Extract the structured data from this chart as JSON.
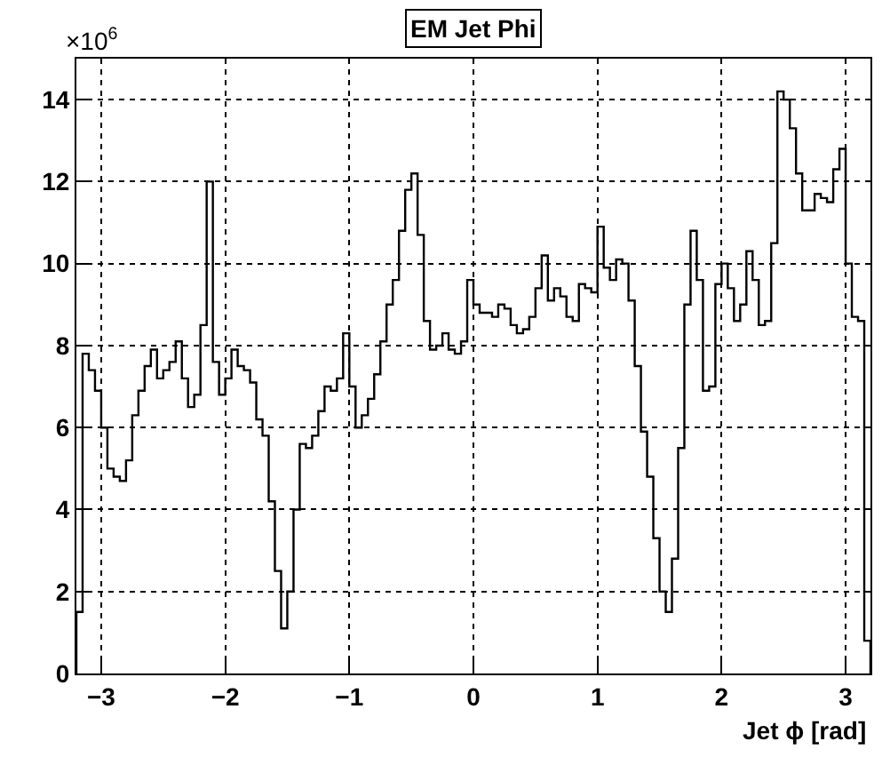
{
  "chart_data": {
    "type": "histogram",
    "title": "EM Jet Phi",
    "xlabel": "Jet ϕ [rad]",
    "ylabel": "×10$^{6}$",
    "bins": [
      -3.2,
      -3.15,
      -3.1,
      -3.05,
      -3.0,
      -2.95,
      -2.9,
      -2.85,
      -2.8,
      -2.75,
      -2.7,
      -2.65,
      -2.6,
      -2.55,
      -2.5,
      -2.45,
      -2.4,
      -2.35,
      -2.3,
      -2.25,
      -2.2,
      -2.15,
      -2.1,
      -2.05,
      -2.0,
      -1.95,
      -1.9,
      -1.85,
      -1.8,
      -1.75,
      -1.7,
      -1.65,
      -1.6,
      -1.55,
      -1.5,
      -1.45,
      -1.4,
      -1.35,
      -1.3,
      -1.25,
      -1.2,
      -1.15,
      -1.1,
      -1.05,
      -1.0,
      -0.95,
      -0.9,
      -0.85,
      -0.8,
      -0.75,
      -0.7,
      -0.65,
      -0.6,
      -0.55,
      -0.5,
      -0.45,
      -0.4,
      -0.35,
      -0.3,
      -0.25,
      -0.2,
      -0.15,
      -0.1,
      -0.05,
      0,
      0.05,
      0.1,
      0.15,
      0.2,
      0.25,
      0.3,
      0.35,
      0.4,
      0.45,
      0.5,
      0.55,
      0.6,
      0.65,
      0.7,
      0.75,
      0.8,
      0.85,
      0.9,
      0.95,
      1.0,
      1.05,
      1.1,
      1.15,
      1.2,
      1.25,
      1.3,
      1.35,
      1.4,
      1.45,
      1.5,
      1.55,
      1.6,
      1.65,
      1.7,
      1.75,
      1.8,
      1.85,
      1.9,
      1.95,
      2.0,
      2.05,
      2.1,
      2.15,
      2.2,
      2.25,
      2.3,
      2.35,
      2.4,
      2.45,
      2.5,
      2.55,
      2.6,
      2.65,
      2.7,
      2.75,
      2.8,
      2.85,
      2.9,
      2.95,
      3.0,
      3.05,
      3.1,
      3.15,
      3.2
    ],
    "values": [
      1.5,
      7.8,
      7.4,
      6.9,
      6.0,
      5.0,
      4.8,
      4.7,
      5.2,
      6.3,
      6.9,
      7.5,
      7.9,
      7.2,
      7.4,
      7.6,
      8.1,
      7.2,
      6.5,
      6.8,
      8.5,
      12.0,
      7.6,
      6.8,
      7.2,
      7.9,
      7.5,
      7.4,
      7.1,
      6.2,
      5.8,
      4.2,
      2.5,
      1.1,
      2.0,
      4.0,
      5.6,
      5.5,
      5.8,
      6.4,
      7.0,
      6.9,
      7.2,
      8.3,
      7.0,
      6.0,
      6.3,
      6.7,
      7.3,
      8.1,
      9.0,
      9.6,
      10.8,
      11.8,
      12.2,
      10.7,
      8.6,
      7.9,
      8.0,
      8.3,
      7.9,
      7.8,
      8.1,
      9.6,
      9.0,
      8.8,
      8.8,
      8.7,
      9.0,
      8.9,
      8.5,
      8.3,
      8.4,
      8.7,
      9.4,
      10.2,
      9.1,
      9.4,
      9.2,
      8.7,
      8.6,
      9.5,
      9.4,
      9.3,
      10.9,
      9.9,
      9.6,
      10.1,
      10.0,
      9.1,
      7.5,
      5.9,
      4.8,
      3.3,
      2.0,
      1.5,
      2.8,
      5.5,
      9.0,
      10.8,
      9.6,
      6.9,
      7.0,
      9.5,
      10.0,
      9.4,
      8.6,
      9.0,
      10.3,
      9.6,
      8.5,
      8.6,
      10.5,
      14.2,
      14.0,
      13.3,
      12.2,
      11.3,
      11.3,
      11.7,
      11.6,
      11.5,
      12.3,
      12.8,
      10.0,
      8.7,
      8.6,
      0.8
    ],
    "color": "#000000",
    "xlim": [
      -3.2,
      3.2
    ],
    "xticks": [
      {
        "value": -3,
        "label": "−3"
      },
      {
        "value": -2,
        "label": "−2"
      },
      {
        "value": -1,
        "label": "−1"
      },
      0,
      1,
      2,
      3
    ],
    "ylim": [
      0,
      15
    ],
    "yticks": [
      0,
      2,
      4,
      6,
      8,
      10,
      12,
      14
    ],
    "grid": true
  }
}
